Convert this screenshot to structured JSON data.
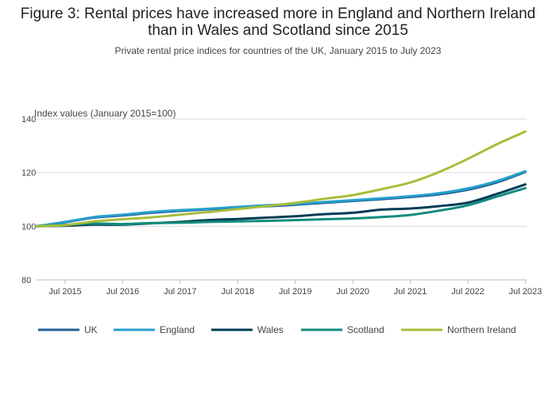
{
  "chart_data": {
    "type": "line",
    "title": "Figure 3: Rental prices have increased more in England and Northern Ireland than in Wales and Scotland since 2015",
    "subtitle": "Private rental price indices for countries of the UK, January 2015 to July 2023",
    "ylabel": "Index values (January 2015=100)",
    "ylim": [
      80,
      140
    ],
    "yticks": [
      80,
      100,
      120,
      140
    ],
    "x_start": "2015-01",
    "xticks": [
      "Jul 2015",
      "Jul 2016",
      "Jul 2017",
      "Jul 2018",
      "Jul 2019",
      "Jul 2020",
      "Jul 2021",
      "Jul 2022",
      "Jul 2023"
    ],
    "x": [
      "2015-01",
      "2015-07",
      "2016-01",
      "2016-07",
      "2017-01",
      "2017-07",
      "2018-01",
      "2018-07",
      "2019-01",
      "2019-07",
      "2020-01",
      "2020-07",
      "2021-01",
      "2021-07",
      "2022-01",
      "2022-07",
      "2023-01",
      "2023-07"
    ],
    "grid": true,
    "legend_position": "bottom",
    "series": [
      {
        "name": "UK",
        "color": "#206095",
        "values": [
          100.0,
          101.5,
          103.2,
          104.0,
          105.0,
          105.7,
          106.3,
          106.9,
          107.4,
          108.0,
          108.7,
          109.4,
          110.1,
          110.9,
          111.9,
          113.6,
          116.3,
          120.2
        ]
      },
      {
        "name": "England",
        "color": "#27a0cc",
        "values": [
          100.0,
          101.6,
          103.4,
          104.3,
          105.3,
          106.0,
          106.5,
          107.2,
          107.8,
          108.3,
          109.0,
          109.7,
          110.4,
          111.2,
          112.3,
          114.1,
          116.8,
          120.5
        ]
      },
      {
        "name": "Wales",
        "color": "#003c57",
        "values": [
          100.0,
          100.2,
          100.6,
          100.6,
          101.1,
          101.6,
          102.3,
          102.7,
          103.2,
          103.7,
          104.5,
          105.0,
          106.2,
          106.6,
          107.5,
          108.8,
          112.0,
          115.6
        ]
      },
      {
        "name": "Scotland",
        "color": "#118c7b",
        "values": [
          100.0,
          100.5,
          101.0,
          100.8,
          101.2,
          101.3,
          101.6,
          101.8,
          102.0,
          102.3,
          102.6,
          102.9,
          103.4,
          104.2,
          105.8,
          107.8,
          111.0,
          114.2
        ]
      },
      {
        "name": "Northern Ireland",
        "color": "#a8bd3a",
        "values": [
          100.0,
          100.4,
          101.8,
          102.6,
          103.3,
          104.3,
          105.3,
          106.4,
          107.5,
          108.7,
          110.2,
          111.6,
          113.8,
          116.3,
          120.2,
          125.1,
          130.5,
          135.3
        ]
      }
    ]
  }
}
